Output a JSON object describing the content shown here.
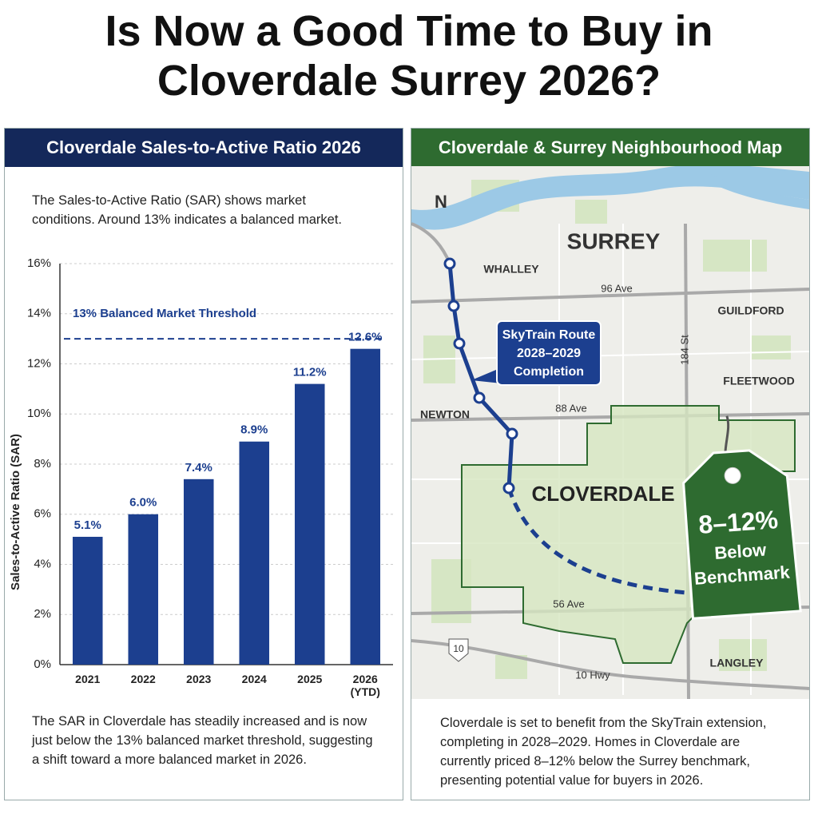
{
  "title": "Is Now a Good Time to Buy in Cloverdale Surrey 2026?",
  "chart_data": {
    "type": "bar",
    "title": "Cloverdale Sales-to-Active Ratio 2026",
    "subtitle": "The Sales-to-Active Ratio (SAR) shows market conditions. Around 13% indicates a balanced market.",
    "y_label": "Sales-to-Active Ratio (SAR)",
    "categories": [
      "2021",
      "2022",
      "2023",
      "2024",
      "2025",
      "2026 (YTD)"
    ],
    "values": [
      5.1,
      6.0,
      7.4,
      8.9,
      11.2,
      12.6
    ],
    "value_labels": [
      "5.1%",
      "6.0%",
      "7.4%",
      "8.9%",
      "11.2%",
      "12.6%"
    ],
    "color": "#1c3f8f",
    "ylim": [
      0,
      16
    ],
    "yticks": [
      {
        "value": 0,
        "label": "0%"
      },
      {
        "value": 2,
        "label": "2%"
      },
      {
        "value": 4,
        "label": "4%"
      },
      {
        "value": 6,
        "label": "6%"
      },
      {
        "value": 8,
        "label": "8%"
      },
      {
        "value": 10,
        "label": "10%"
      },
      {
        "value": 12,
        "label": "12%"
      },
      {
        "value": 14,
        "label": "14%"
      },
      {
        "value": 16,
        "label": "16%"
      }
    ],
    "grid": true,
    "threshold": {
      "value": 13,
      "label": "13% Balanced Market Threshold"
    },
    "note": "The SAR in Cloverdale has steadily increased and is now just below the 13% balanced market threshold, suggesting a shift toward a more balanced market in 2026."
  },
  "map": {
    "title": "Cloverdale & Surrey Neighbourhood Map",
    "north": "N",
    "places": {
      "surrey": "SURREY",
      "whalley": "WHALLEY",
      "guildford": "GUILDFORD",
      "fleetwood": "FLEETWOOD",
      "newton": "NEWTON",
      "cloverdale": "CLOVERDALE",
      "langley": "LANGLEY"
    },
    "roads": {
      "ave96": "96 Ave",
      "st184": "184 St",
      "ave88": "88 Ave",
      "ave56": "56 Ave",
      "hwy10": "10 Hwy",
      "shield": "10"
    },
    "callout": [
      "SkyTrain Route",
      "2028–2029",
      "Completion"
    ],
    "tag": [
      "8–12%",
      "Below",
      "Benchmark"
    ],
    "note": "Cloverdale is set to benefit from the SkyTrain extension, completing in 2028–2029. Homes in Cloverdale are currently priced 8–12% below the Surrey benchmark, presenting potential value for buyers in 2026."
  }
}
